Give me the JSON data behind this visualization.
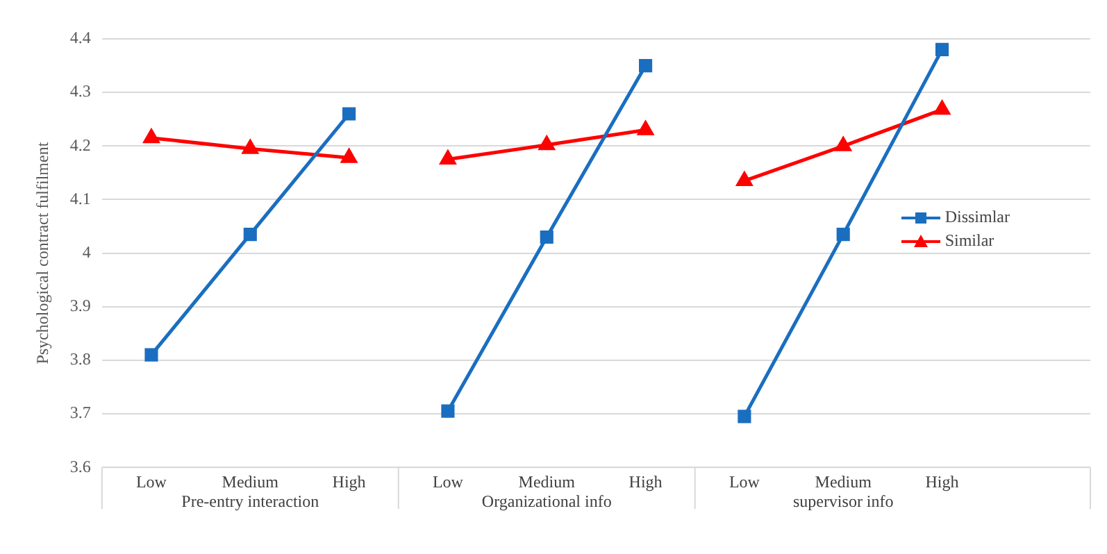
{
  "chart_data": {
    "type": "line",
    "ylabel": "Psychological contract fulfilment",
    "categories": [
      "Low",
      "Medium",
      "High",
      "Low",
      "Medium",
      "High",
      "Low",
      "Medium",
      "High",
      null
    ],
    "series": [
      {
        "name": "Dissimlar",
        "color": "#1a6ec0",
        "marker": "square",
        "values": [
          3.81,
          4.035,
          4.26,
          3.705,
          4.03,
          4.35,
          3.695,
          4.035,
          4.38,
          null
        ]
      },
      {
        "name": "Similar",
        "color": "#ff0000",
        "marker": "triangle",
        "values": [
          4.215,
          4.195,
          4.178,
          4.175,
          4.202,
          4.23,
          4.135,
          4.2,
          4.268,
          null
        ]
      }
    ],
    "annotations": [
      "Pre-entry interaction",
      "Organizational info",
      "supervisor info"
    ],
    "ylim": [
      3.6,
      4.4
    ],
    "yticks": [
      3.6,
      3.7,
      3.8,
      3.9,
      4,
      4.1,
      4.2,
      4.3,
      4.4
    ],
    "grid": "y",
    "legend": "right"
  }
}
